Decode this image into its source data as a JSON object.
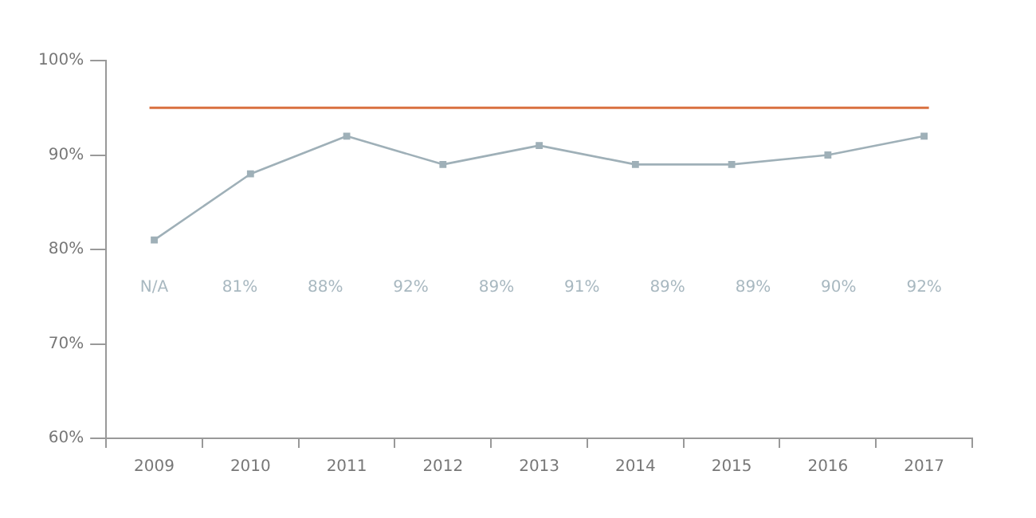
{
  "chart_data": {
    "type": "line",
    "categories": [
      "2009",
      "2010",
      "2011",
      "2012",
      "2013",
      "2014",
      "2015",
      "2016",
      "2017"
    ],
    "series": [
      {
        "color": "#9fb0b8",
        "values": [
          81,
          88,
          92,
          89,
          91,
          89,
          89,
          90,
          92
        ]
      }
    ],
    "ylim": [
      60,
      100
    ],
    "yticks": [
      {
        "value": 60,
        "label": "60%"
      },
      {
        "value": 70,
        "label": "70%"
      },
      {
        "value": 80,
        "label": "80%"
      },
      {
        "value": 90,
        "label": "90%"
      },
      {
        "value": 100,
        "label": "100%"
      }
    ],
    "ref_lines": [
      {
        "axis": "y",
        "value": 95,
        "color": "#d9703f"
      }
    ],
    "annotations": [
      "N/A",
      "81%",
      "88%",
      "92%",
      "89%",
      "91%",
      "89%",
      "89%",
      "90%",
      "92%"
    ],
    "grid": false,
    "legend": false,
    "marker": "square",
    "line_style": "solid"
  }
}
